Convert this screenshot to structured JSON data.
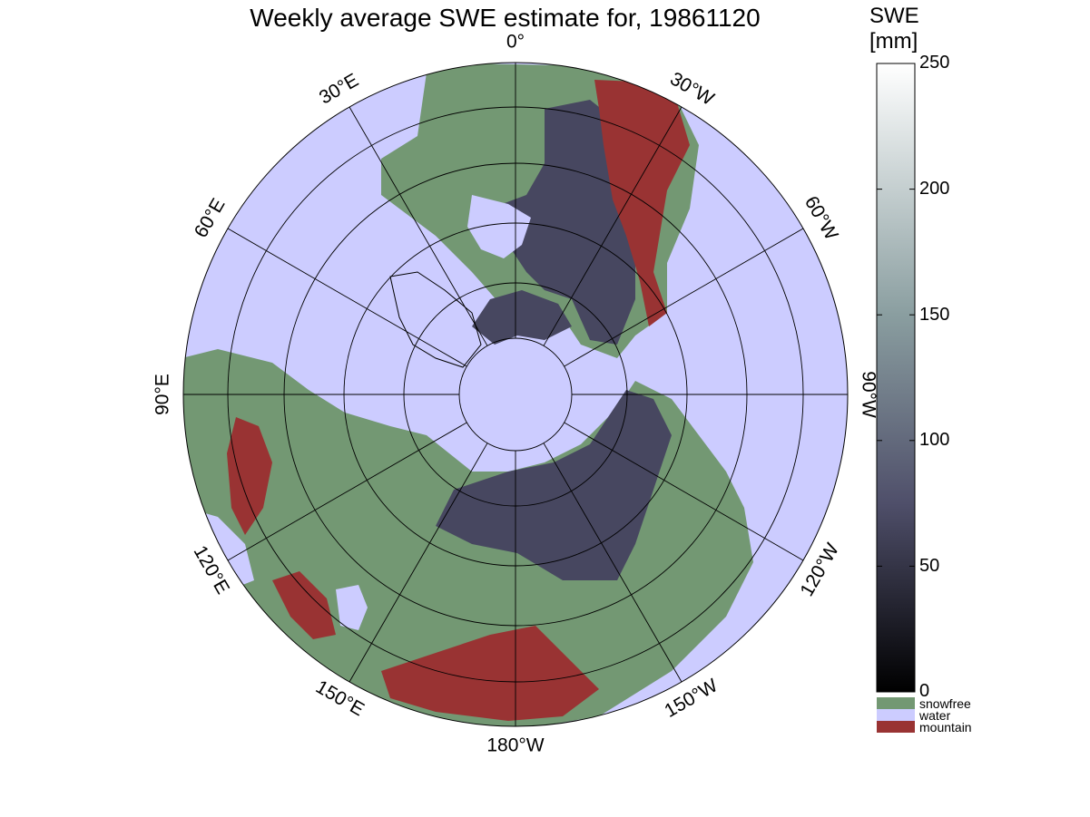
{
  "title": "Weekly average SWE estimate for, 19861120",
  "longitude_labels": [
    {
      "text": "90°W",
      "lon": -90
    },
    {
      "text": "120°W",
      "lon": -120
    },
    {
      "text": "150°W",
      "lon": -150
    },
    {
      "text": "180°W",
      "lon": 180
    },
    {
      "text": "150°E",
      "lon": 150
    },
    {
      "text": "120°E",
      "lon": 120
    },
    {
      "text": "90°E",
      "lon": 90
    },
    {
      "text": "60°E",
      "lon": 60
    },
    {
      "text": "30°E",
      "lon": 30
    },
    {
      "text": "0°",
      "lon": 0
    },
    {
      "text": "30°W",
      "lon": -30
    },
    {
      "text": "60°W",
      "lon": -60
    }
  ],
  "colorbar": {
    "title_line1": "SWE",
    "title_line2": "[mm]",
    "ticks": [
      "250",
      "200",
      "150",
      "100",
      "50",
      "0"
    ],
    "range": [
      0,
      250
    ],
    "gradient_colors": [
      "#000000",
      "#4f4f6a",
      "#8a9ea0",
      "#ffffff"
    ]
  },
  "legend": [
    {
      "label": "snowfree",
      "color": "#739873"
    },
    {
      "label": "water",
      "color": "#ccccff"
    },
    {
      "label": "mountain",
      "color": "#993333"
    }
  ]
}
